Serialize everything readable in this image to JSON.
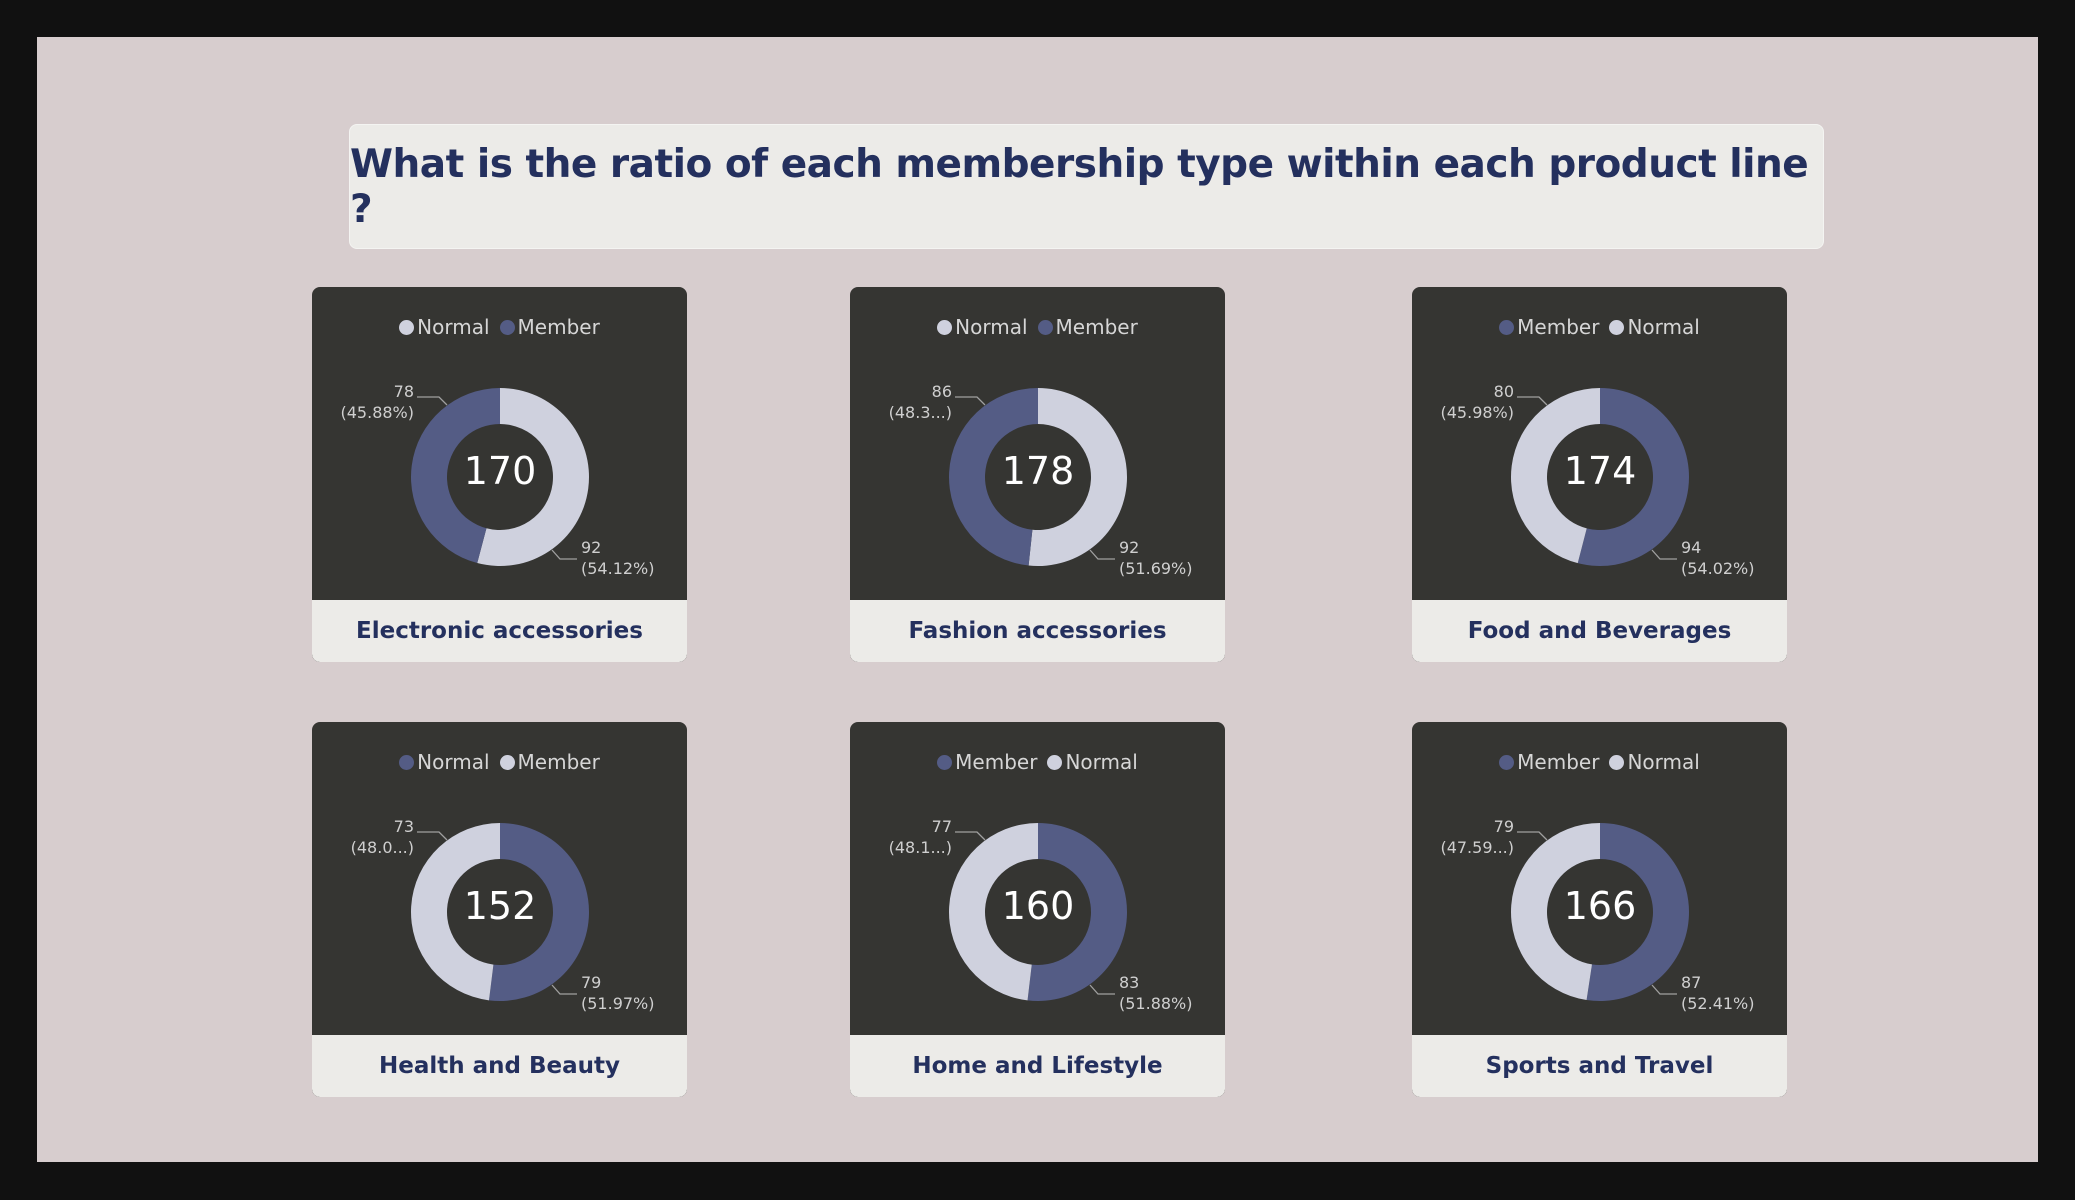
{
  "title": "What is the ratio of each membership type within each product line ?",
  "colors": {
    "light": "#cfd1de",
    "dark": "#545c85",
    "card": "#353532",
    "background": "#d7cdce",
    "title_text": "#24305e"
  },
  "chart_data": [
    {
      "type": "pie",
      "title": "Electronic accessories",
      "total": "170",
      "legend": [
        {
          "name": "Normal",
          "color": "#cfd1de"
        },
        {
          "name": "Member",
          "color": "#545c85"
        }
      ],
      "slices": [
        {
          "name": "Normal",
          "value": 92,
          "color": "#cfd1de",
          "value_label": "92",
          "pct_label": "(54.12%)"
        },
        {
          "name": "Member",
          "value": 78,
          "color": "#545c85",
          "value_label": "78",
          "pct_label": "(45.88%)"
        }
      ]
    },
    {
      "type": "pie",
      "title": "Fashion accessories",
      "total": "178",
      "legend": [
        {
          "name": "Normal",
          "color": "#cfd1de"
        },
        {
          "name": "Member",
          "color": "#545c85"
        }
      ],
      "slices": [
        {
          "name": "Normal",
          "value": 92,
          "color": "#cfd1de",
          "value_label": "92",
          "pct_label": "(51.69%)"
        },
        {
          "name": "Member",
          "value": 86,
          "color": "#545c85",
          "value_label": "86",
          "pct_label": "(48.3...)"
        }
      ]
    },
    {
      "type": "pie",
      "title": "Food and Beverages",
      "total": "174",
      "legend": [
        {
          "name": "Member",
          "color": "#545c85"
        },
        {
          "name": "Normal",
          "color": "#cfd1de"
        }
      ],
      "slices": [
        {
          "name": "Member",
          "value": 94,
          "color": "#545c85",
          "value_label": "94",
          "pct_label": "(54.02%)"
        },
        {
          "name": "Normal",
          "value": 80,
          "color": "#cfd1de",
          "value_label": "80",
          "pct_label": "(45.98%)"
        }
      ]
    },
    {
      "type": "pie",
      "title": "Health and Beauty",
      "total": "152",
      "legend": [
        {
          "name": "Normal",
          "color": "#545c85"
        },
        {
          "name": "Member",
          "color": "#cfd1de"
        }
      ],
      "slices": [
        {
          "name": "Normal",
          "value": 79,
          "color": "#545c85",
          "value_label": "79",
          "pct_label": "(51.97%)"
        },
        {
          "name": "Member",
          "value": 73,
          "color": "#cfd1de",
          "value_label": "73",
          "pct_label": "(48.0...)"
        }
      ]
    },
    {
      "type": "pie",
      "title": "Home and Lifestyle",
      "total": "160",
      "legend": [
        {
          "name": "Member",
          "color": "#545c85"
        },
        {
          "name": "Normal",
          "color": "#cfd1de"
        }
      ],
      "slices": [
        {
          "name": "Member",
          "value": 83,
          "color": "#545c85",
          "value_label": "83",
          "pct_label": "(51.88%)"
        },
        {
          "name": "Normal",
          "value": 77,
          "color": "#cfd1de",
          "value_label": "77",
          "pct_label": "(48.1...)"
        }
      ]
    },
    {
      "type": "pie",
      "title": "Sports and Travel",
      "total": "166",
      "legend": [
        {
          "name": "Member",
          "color": "#545c85"
        },
        {
          "name": "Normal",
          "color": "#cfd1de"
        }
      ],
      "slices": [
        {
          "name": "Member",
          "value": 87,
          "color": "#545c85",
          "value_label": "87",
          "pct_label": "(52.41%)"
        },
        {
          "name": "Normal",
          "value": 79,
          "color": "#cfd1de",
          "value_label": "79",
          "pct_label": "(47.59...)"
        }
      ]
    }
  ]
}
